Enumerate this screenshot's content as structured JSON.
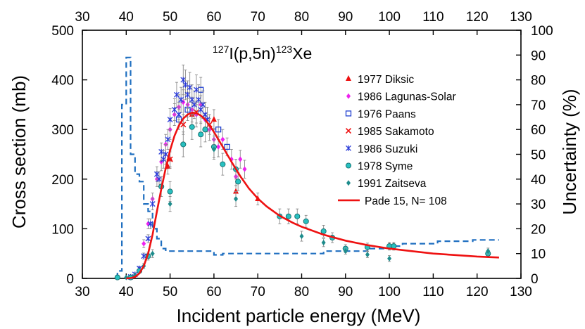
{
  "chart_data": {
    "type": "scatter",
    "title": {
      "prefix": "127",
      "main1": "I(p,5n)",
      "sup2": "123",
      "main2": "Xe"
    },
    "xlabel": "Incident particle energy (MeV)",
    "ylabel": "Cross section (mb)",
    "y2label": "Uncertainty (%)",
    "xlim": [
      30,
      130
    ],
    "ylim": [
      0,
      500
    ],
    "y2lim": [
      0,
      100
    ],
    "xticks": [
      "30",
      "40",
      "50",
      "60",
      "70",
      "80",
      "90",
      "100",
      "110",
      "120",
      "130"
    ],
    "yticks": [
      "0",
      "100",
      "200",
      "300",
      "400",
      "500"
    ],
    "y2ticks": [
      "0",
      "10",
      "20",
      "30",
      "40",
      "50",
      "60",
      "70",
      "80",
      "90",
      "100"
    ],
    "series": [
      {
        "name": "1977 Diksic",
        "color": "#ee1111",
        "marker": "triangle",
        "points": [
          [
            49.5,
            225,
            15
          ],
          [
            50,
            240,
            15
          ],
          [
            55,
            330,
            25
          ],
          [
            60,
            320,
            20
          ],
          [
            65,
            175,
            12
          ],
          [
            70,
            160,
            12
          ]
        ]
      },
      {
        "name": "1986 Lagunas-Solar",
        "color": "#ee22ee",
        "marker": "diamond",
        "points": [
          [
            44,
            70,
            8
          ],
          [
            45,
            110,
            10
          ],
          [
            46,
            160,
            12
          ],
          [
            47,
            200,
            15
          ],
          [
            48,
            235,
            18
          ],
          [
            49,
            270,
            20
          ],
          [
            50,
            300,
            20
          ],
          [
            51,
            330,
            22
          ],
          [
            52,
            345,
            25
          ],
          [
            53,
            355,
            25
          ],
          [
            54,
            350,
            25
          ],
          [
            55,
            340,
            25
          ],
          [
            56,
            330,
            25
          ],
          [
            57,
            350,
            25
          ],
          [
            58,
            320,
            25
          ],
          [
            59,
            300,
            22
          ],
          [
            60,
            280,
            22
          ],
          [
            61,
            265,
            20
          ],
          [
            62,
            280,
            20
          ],
          [
            64,
            240,
            20
          ],
          [
            65,
            205,
            18
          ],
          [
            66,
            240,
            18
          ],
          [
            67,
            220,
            18
          ]
        ]
      },
      {
        "name": "1976 Paans",
        "color": "#1f3fd0",
        "marker": "square",
        "points": [
          [
            52,
            320,
            20
          ],
          [
            54,
            340,
            22
          ],
          [
            57,
            380,
            25
          ],
          [
            61,
            300,
            20
          ],
          [
            63,
            265,
            18
          ]
        ]
      },
      {
        "name": "1985 Sakamoto",
        "color": "#ee1111",
        "marker": "x",
        "points": [
          [
            50,
            240,
            18
          ],
          [
            53,
            310,
            20
          ],
          [
            56,
            335,
            22
          ],
          [
            59,
            310,
            20
          ]
        ]
      },
      {
        "name": "1986 Suzuki",
        "color": "#2a3bd8",
        "marker": "asterisk",
        "points": [
          [
            41,
            3,
            2
          ],
          [
            42,
            8,
            3
          ],
          [
            43,
            20,
            4
          ],
          [
            44,
            45,
            6
          ],
          [
            45,
            80,
            8
          ],
          [
            45.5,
            110,
            10
          ],
          [
            46,
            150,
            12
          ],
          [
            47,
            210,
            15
          ],
          [
            47.5,
            200,
            15
          ],
          [
            48,
            255,
            18
          ],
          [
            48.5,
            240,
            18
          ],
          [
            49,
            250,
            20
          ],
          [
            49.5,
            280,
            20
          ],
          [
            50,
            320,
            22
          ],
          [
            51,
            340,
            22
          ],
          [
            51.5,
            370,
            25
          ],
          [
            52,
            330,
            25
          ],
          [
            52.5,
            360,
            25
          ],
          [
            53,
            400,
            30
          ],
          [
            53.5,
            390,
            30
          ],
          [
            54,
            370,
            28
          ],
          [
            54.5,
            385,
            30
          ],
          [
            55,
            360,
            30
          ],
          [
            55.5,
            350,
            28
          ],
          [
            56,
            380,
            30
          ],
          [
            56.5,
            360,
            30
          ],
          [
            57,
            340,
            28
          ],
          [
            57.5,
            350,
            28
          ],
          [
            58,
            330,
            25
          ],
          [
            58.5,
            320,
            25
          ]
        ]
      },
      {
        "name": "1978 Syme",
        "color": "#28c0c0",
        "marker": "circle",
        "points": [
          [
            38,
            2,
            1
          ],
          [
            41,
            2,
            1
          ],
          [
            43,
            15,
            4
          ],
          [
            45,
            45,
            8
          ],
          [
            48,
            185,
            20
          ],
          [
            50,
            175,
            20
          ],
          [
            53,
            270,
            25
          ],
          [
            55,
            305,
            25
          ],
          [
            57,
            290,
            25
          ],
          [
            58,
            300,
            25
          ],
          [
            60,
            265,
            22
          ],
          [
            62,
            230,
            22
          ],
          [
            65,
            220,
            20
          ],
          [
            65.5,
            195,
            18
          ],
          [
            75,
            125,
            15
          ],
          [
            77,
            125,
            15
          ],
          [
            79,
            125,
            15
          ],
          [
            81,
            115,
            12
          ],
          [
            85,
            95,
            12
          ],
          [
            87,
            82,
            10
          ],
          [
            90,
            60,
            8
          ],
          [
            95,
            63,
            8
          ],
          [
            100,
            65,
            8
          ],
          [
            101,
            65,
            8
          ],
          [
            122.5,
            50,
            6
          ]
        ]
      },
      {
        "name": "1991 Zaitseva",
        "color": "#1e8c8c",
        "marker": "diamond",
        "points": [
          [
            40,
            2,
            1
          ],
          [
            42,
            6,
            2
          ],
          [
            44,
            25,
            5
          ],
          [
            46,
            50,
            8
          ],
          [
            50,
            150,
            15
          ],
          [
            60,
            260,
            20
          ],
          [
            65,
            160,
            15
          ],
          [
            80,
            85,
            10
          ],
          [
            85,
            72,
            8
          ],
          [
            90,
            55,
            6
          ],
          [
            95,
            48,
            6
          ],
          [
            100,
            40,
            6
          ],
          [
            122.5,
            55,
            6
          ]
        ]
      },
      {
        "name": "Pade 15, N= 108",
        "color": "#ee1111",
        "marker": "line",
        "points": [
          [
            40,
            0
          ],
          [
            41,
            0.5
          ],
          [
            42,
            3
          ],
          [
            43,
            10
          ],
          [
            44,
            25
          ],
          [
            45,
            50
          ],
          [
            46,
            88
          ],
          [
            47,
            135
          ],
          [
            48,
            180
          ],
          [
            49,
            222
          ],
          [
            50,
            258
          ],
          [
            51,
            287
          ],
          [
            52,
            308
          ],
          [
            53,
            322
          ],
          [
            54,
            330
          ],
          [
            55,
            334
          ],
          [
            56,
            333
          ],
          [
            57,
            328
          ],
          [
            58,
            320
          ],
          [
            59,
            308
          ],
          [
            60,
            295
          ],
          [
            62,
            265
          ],
          [
            64,
            235
          ],
          [
            66,
            206
          ],
          [
            68,
            181
          ],
          [
            70,
            161
          ],
          [
            72,
            145
          ],
          [
            75,
            126
          ],
          [
            78,
            112
          ],
          [
            80,
            104
          ],
          [
            85,
            88
          ],
          [
            90,
            76
          ],
          [
            95,
            67
          ],
          [
            100,
            60
          ],
          [
            105,
            55
          ],
          [
            110,
            50
          ],
          [
            115,
            47
          ],
          [
            120,
            44
          ],
          [
            125,
            42
          ]
        ]
      }
    ],
    "uncertainty": {
      "name": "Uncertainty",
      "color": "#1f6fc0",
      "points": [
        [
          38,
          0
        ],
        [
          38,
          3
        ],
        [
          39,
          3
        ],
        [
          39,
          70
        ],
        [
          40,
          70
        ],
        [
          40,
          89
        ],
        [
          41,
          89
        ],
        [
          41,
          50
        ],
        [
          42,
          50
        ],
        [
          42,
          42
        ],
        [
          43,
          42
        ],
        [
          43,
          39
        ],
        [
          44,
          39
        ],
        [
          44,
          30
        ],
        [
          45,
          30
        ],
        [
          45,
          27
        ],
        [
          46,
          27
        ],
        [
          46,
          20
        ],
        [
          47,
          20
        ],
        [
          47,
          16
        ],
        [
          48,
          16
        ],
        [
          48,
          12
        ],
        [
          49,
          12
        ],
        [
          49,
          11
        ],
        [
          60,
          11
        ],
        [
          60,
          9.5
        ],
        [
          62,
          9.5
        ],
        [
          62,
          10
        ],
        [
          85,
          10
        ],
        [
          85,
          11
        ],
        [
          95,
          11
        ],
        [
          95,
          12
        ],
        [
          100,
          12
        ],
        [
          100,
          13
        ],
        [
          103,
          13
        ],
        [
          103,
          14
        ],
        [
          111,
          14
        ],
        [
          111,
          15
        ],
        [
          119,
          15
        ],
        [
          119,
          15.5
        ],
        [
          125,
          15.5
        ]
      ]
    }
  }
}
